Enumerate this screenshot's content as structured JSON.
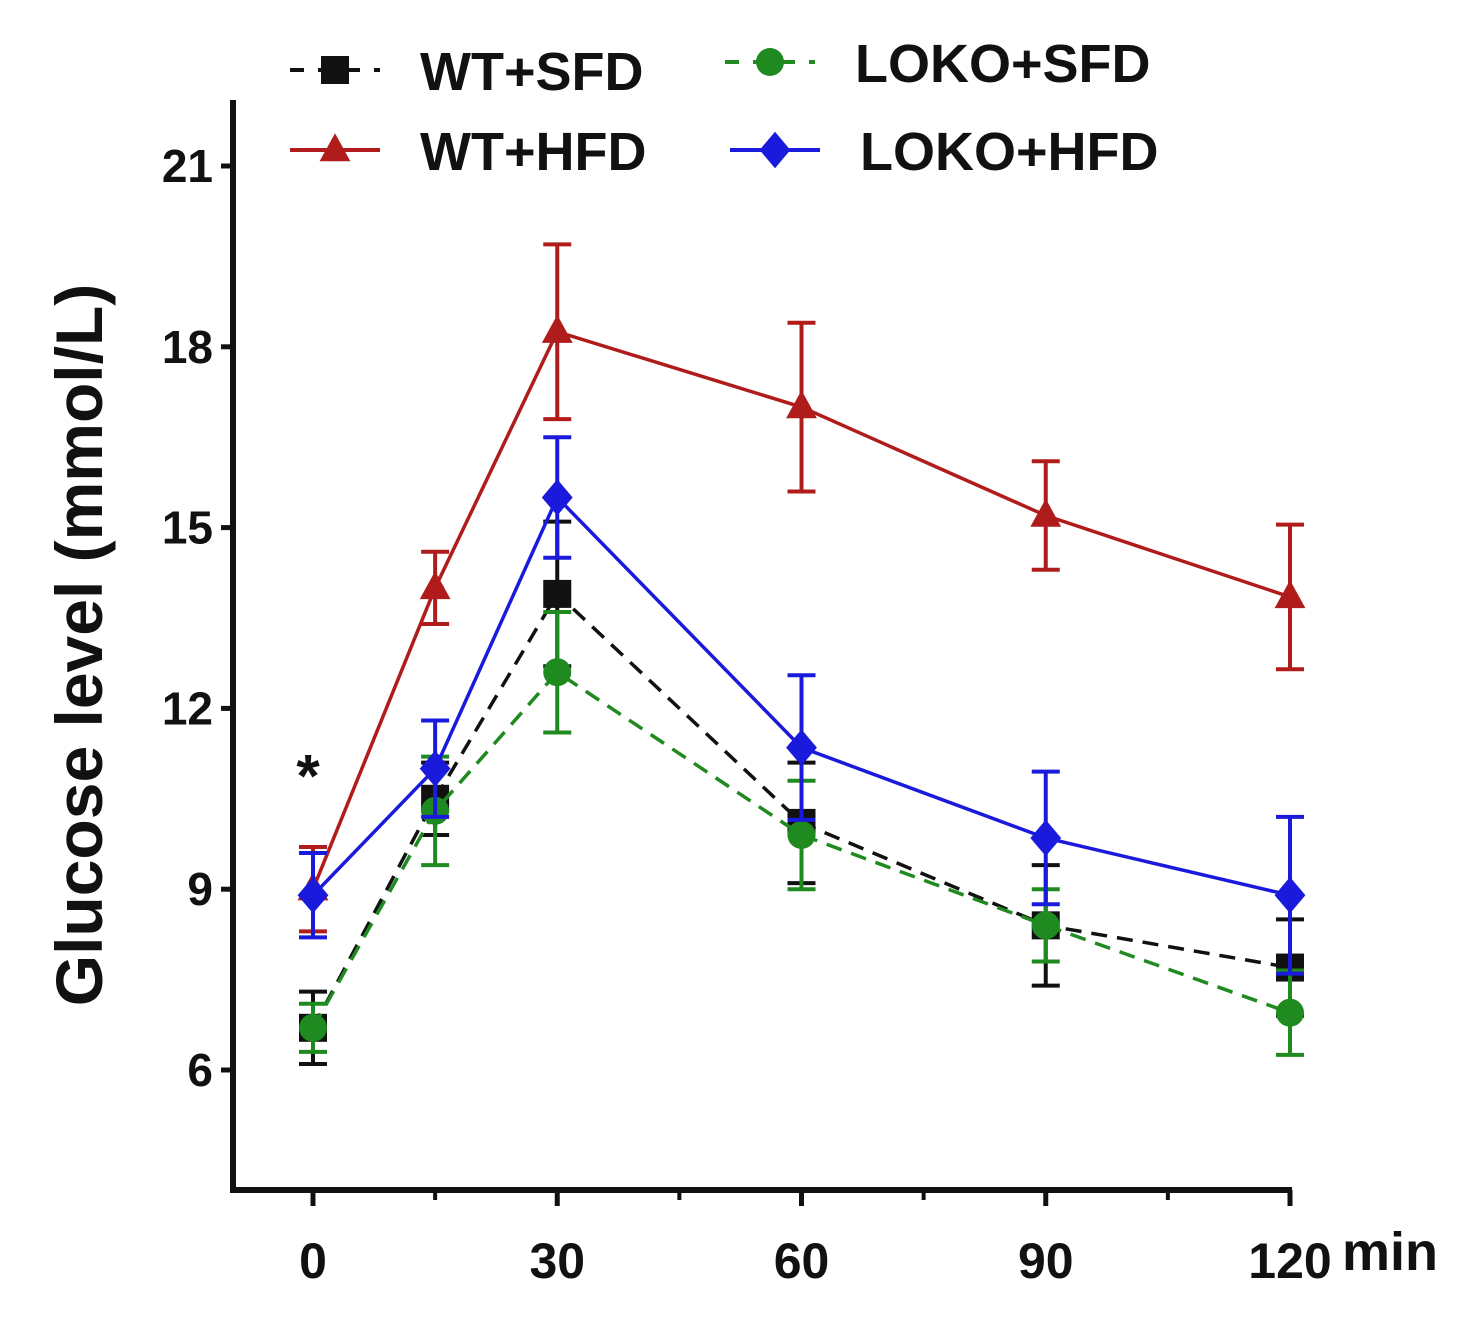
{
  "chart_data": {
    "type": "line",
    "title": "",
    "xlabel": "min",
    "ylabel": "Glucose level (mmol/L)",
    "x": [
      0,
      15,
      30,
      60,
      90,
      120
    ],
    "xticks": [
      0,
      30,
      60,
      90,
      120
    ],
    "xminor_ticks": [
      15,
      45,
      75,
      105
    ],
    "xlim": [
      -10,
      122
    ],
    "yticks": [
      6,
      9,
      12,
      15,
      18,
      21
    ],
    "ylim": [
      3.9,
      22
    ],
    "grid": false,
    "legend_position": "top",
    "annotations": [
      {
        "text": "*",
        "x": 0,
        "y": 11.2
      }
    ],
    "series": [
      {
        "name": "WT+SFD",
        "color": "#111111",
        "dash": true,
        "marker": "square",
        "values": [
          6.7,
          10.5,
          13.9,
          10.1,
          8.4,
          7.7
        ],
        "errors": [
          0.6,
          0.6,
          1.2,
          1.0,
          1.0,
          0.8
        ]
      },
      {
        "name": "LOKO+SFD",
        "color": "#1f8a1f",
        "dash": true,
        "marker": "circle",
        "values": [
          6.7,
          10.3,
          12.6,
          9.9,
          8.4,
          6.95
        ],
        "errors": [
          0.4,
          0.9,
          1.0,
          0.9,
          0.6,
          0.7
        ]
      },
      {
        "name": "WT+HFD",
        "color": "#b01c1c",
        "dash": false,
        "marker": "triangle",
        "values": [
          9.0,
          14.0,
          18.25,
          17.0,
          15.2,
          13.85
        ],
        "errors": [
          0.7,
          0.6,
          1.45,
          1.4,
          0.9,
          1.2
        ]
      },
      {
        "name": "LOKO+HFD",
        "color": "#1a1adc",
        "dash": false,
        "marker": "diamond",
        "values": [
          8.9,
          11.0,
          15.5,
          11.35,
          9.85,
          8.9
        ],
        "errors": [
          0.7,
          0.8,
          1.0,
          1.2,
          1.1,
          1.3
        ]
      }
    ]
  }
}
